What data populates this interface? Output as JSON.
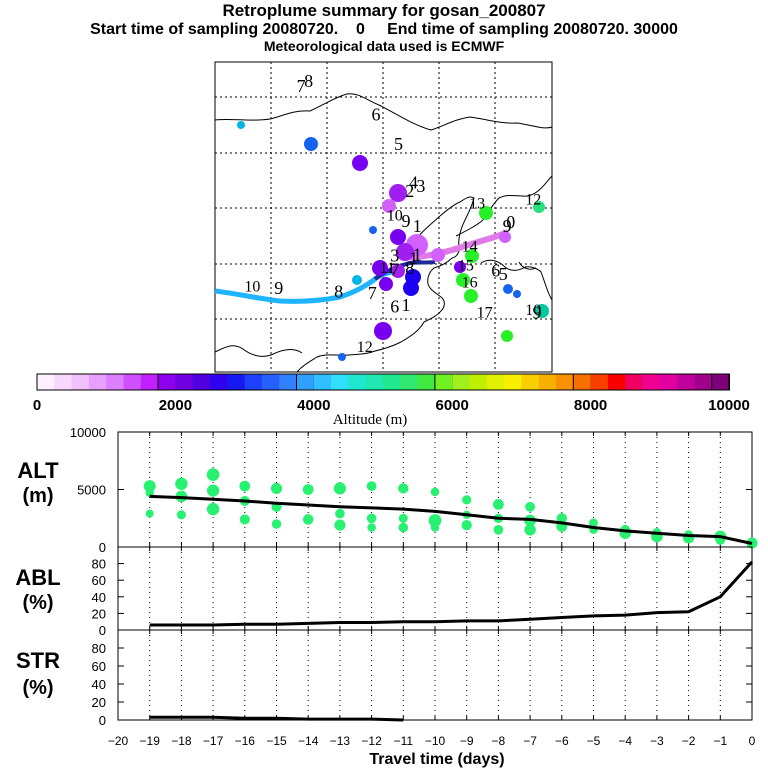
{
  "titles": {
    "title": "Retroplume summary for gosan_200807",
    "line2_start": "Start time of sampling 20080720.    0",
    "line2_end": "End time of sampling 20080720. 30000",
    "line3": "Meteorological data used is ECMWF"
  },
  "map": {
    "labels": [
      {
        "text": "8",
        "lon": 125,
        "lat": 58,
        "color": "#00b4e6"
      },
      {
        "text": "7",
        "lon": 127,
        "lat": 57.6,
        "color": "#00b4e6"
      },
      {
        "text": "6",
        "lon": 107,
        "lat": 55.3,
        "color": "#1464f0"
      },
      {
        "text": "5",
        "lon": 101,
        "lat": 52.9,
        "color": "#7800f0"
      },
      {
        "text": "4",
        "lon": 97,
        "lat": 49.8,
        "color": "#a01ef0"
      },
      {
        "text": "3",
        "lon": 95,
        "lat": 49.5,
        "color": "#b040f0"
      },
      {
        "text": "2",
        "lon": 98,
        "lat": 49.1,
        "color": "#d260ff"
      },
      {
        "text": "13",
        "lon": 80,
        "lat": 48.2,
        "color": "#28f028"
      },
      {
        "text": "12",
        "lon": 65,
        "lat": 48.5,
        "color": "#28e080"
      },
      {
        "text": "10",
        "lon": 102,
        "lat": 47.2,
        "color": "#1464f0"
      },
      {
        "text": "9",
        "lon": 99,
        "lat": 46.7,
        "color": "#7800f0"
      },
      {
        "text": "1",
        "lon": 96,
        "lat": 46.3,
        "color": "#a01ef0"
      },
      {
        "text": "0",
        "lon": 71,
        "lat": 46.6,
        "color": "#d260ff"
      },
      {
        "text": "9",
        "lon": 72,
        "lat": 46.3,
        "color": "#d260ff"
      },
      {
        "text": "14",
        "lon": 82,
        "lat": 44.7,
        "color": "#28f028"
      },
      {
        "text": "3",
        "lon": 102,
        "lat": 43.9,
        "color": "#7800f0"
      },
      {
        "text": "1",
        "lon": 97,
        "lat": 43.7,
        "color": "#a01ef0"
      },
      {
        "text": "1",
        "lon": 96,
        "lat": 44.0,
        "color": "#a01ef0"
      },
      {
        "text": "15",
        "lon": 83,
        "lat": 43.2,
        "color": "#28f028"
      },
      {
        "text": "11",
        "lon": 104,
        "lat": 43.0,
        "color": "#1464f0"
      },
      {
        "text": "7",
        "lon": 102,
        "lat": 42.8,
        "color": "#7800f0"
      },
      {
        "text": "8",
        "lon": 98,
        "lat": 42.9,
        "color": "#1e00f0"
      },
      {
        "text": "6",
        "lon": 75,
        "lat": 42.7,
        "color": "#1464f0"
      },
      {
        "text": "5",
        "lon": 73,
        "lat": 42.4,
        "color": "#1464f0"
      },
      {
        "text": "16",
        "lon": 82,
        "lat": 41.8,
        "color": "#28f028"
      },
      {
        "text": "10",
        "lon": 140,
        "lat": 41.5,
        "color": "#00b4e6"
      },
      {
        "text": "9",
        "lon": 133,
        "lat": 41.3,
        "color": "#00b4e6"
      },
      {
        "text": "8",
        "lon": 117,
        "lat": 41.0,
        "color": "#00b4e6"
      },
      {
        "text": "7",
        "lon": 108,
        "lat": 40.9,
        "color": "#1e00f0"
      },
      {
        "text": "6",
        "lon": 102,
        "lat": 39.8,
        "color": "#7800f0"
      },
      {
        "text": "1",
        "lon": 99,
        "lat": 39.9,
        "color": "#7800f0"
      },
      {
        "text": "10",
        "lon": 65,
        "lat": 39.6,
        "color": "#00c8a0"
      },
      {
        "text": "9",
        "lon": 64,
        "lat": 39.3,
        "color": "#00c8a0"
      },
      {
        "text": "17",
        "lon": 78,
        "lat": 39.4,
        "color": "#28f028"
      },
      {
        "text": "12",
        "lon": 110,
        "lat": 36.6,
        "color": "#1464f0"
      }
    ]
  },
  "colorbar": {
    "ticks": [
      "0",
      "2000",
      "4000",
      "6000",
      "8000",
      "10000"
    ],
    "label": "Altitude (m)",
    "colors": [
      "#fff0ff",
      "#f8d8ff",
      "#f0c0ff",
      "#e8a0ff",
      "#dc80ff",
      "#d050ff",
      "#c020ff",
      "#9000f0",
      "#7000e0",
      "#5000e0",
      "#3000f0",
      "#1818f0",
      "#2040ff",
      "#2860ff",
      "#3080ff",
      "#30a0ff",
      "#30c0ff",
      "#30e0f8",
      "#20e8d0",
      "#20e8b0",
      "#20e890",
      "#30e870",
      "#40e840",
      "#70f020",
      "#a0f020",
      "#c0f000",
      "#e0f000",
      "#f8f000",
      "#f8d000",
      "#f8b000",
      "#f89000",
      "#f87000",
      "#f84000",
      "#f80000",
      "#f00060",
      "#f00090",
      "#e000a0",
      "#c0009a",
      "#a0008a",
      "#80007a"
    ]
  },
  "side_labels": {
    "alt": "ALT",
    "alt_unit": "(m)",
    "abl": "ABL",
    "abl_unit": "(%)",
    "str": "STR",
    "str_unit": "(%)"
  },
  "xlabel": "Travel time (days)",
  "chart_data": [
    {
      "type": "line",
      "title": "ALT",
      "ylabel": "ALT (m)",
      "xlabel": "Travel time (days)",
      "xlim": [
        -20,
        0
      ],
      "ylim": [
        0,
        10000
      ],
      "yticks": [
        "0",
        "5000",
        "10000"
      ],
      "x": [
        -19,
        -18,
        -17,
        -16,
        -15,
        -14,
        -13,
        -12,
        -11,
        -10,
        -9,
        -8,
        -7,
        -6,
        -5,
        -4,
        -3,
        -2,
        -1,
        0
      ],
      "series": [
        {
          "name": "mean altitude",
          "values": [
            4400,
            4300,
            4150,
            4000,
            3800,
            3650,
            3500,
            3400,
            3300,
            3100,
            2800,
            2500,
            2400,
            2100,
            1700,
            1400,
            1200,
            1000,
            900,
            300
          ]
        }
      ],
      "scatter": [
        {
          "x": -19,
          "y": 5300
        },
        {
          "x": -19,
          "y": 4700
        },
        {
          "x": -19,
          "y": 2900
        },
        {
          "x": -18,
          "y": 5500
        },
        {
          "x": -18,
          "y": 4400
        },
        {
          "x": -18,
          "y": 2800
        },
        {
          "x": -17,
          "y": 6300
        },
        {
          "x": -17,
          "y": 4900
        },
        {
          "x": -17,
          "y": 3300
        },
        {
          "x": -16,
          "y": 5300
        },
        {
          "x": -16,
          "y": 4000
        },
        {
          "x": -16,
          "y": 2400
        },
        {
          "x": -15,
          "y": 5100
        },
        {
          "x": -15,
          "y": 3500
        },
        {
          "x": -15,
          "y": 2000
        },
        {
          "x": -14,
          "y": 5000
        },
        {
          "x": -14,
          "y": 2400
        },
        {
          "x": -13,
          "y": 5100
        },
        {
          "x": -13,
          "y": 2900
        },
        {
          "x": -13,
          "y": 1900
        },
        {
          "x": -12,
          "y": 5300
        },
        {
          "x": -12,
          "y": 2500
        },
        {
          "x": -12,
          "y": 1700
        },
        {
          "x": -11,
          "y": 5100
        },
        {
          "x": -11,
          "y": 2500
        },
        {
          "x": -11,
          "y": 1700
        },
        {
          "x": -10,
          "y": 4800
        },
        {
          "x": -10,
          "y": 2300
        },
        {
          "x": -10,
          "y": 1700
        },
        {
          "x": -9,
          "y": 4100
        },
        {
          "x": -9,
          "y": 2800
        },
        {
          "x": -9,
          "y": 1900
        },
        {
          "x": -8,
          "y": 3700
        },
        {
          "x": -8,
          "y": 2500
        },
        {
          "x": -8,
          "y": 1500
        },
        {
          "x": -7,
          "y": 3500
        },
        {
          "x": -7,
          "y": 2300
        },
        {
          "x": -7,
          "y": 1500
        },
        {
          "x": -6,
          "y": 2500
        },
        {
          "x": -6,
          "y": 1800
        },
        {
          "x": -5,
          "y": 2100
        },
        {
          "x": -5,
          "y": 1500
        },
        {
          "x": -4,
          "y": 1500
        },
        {
          "x": -4,
          "y": 1200
        },
        {
          "x": -3,
          "y": 1300
        },
        {
          "x": -3,
          "y": 900
        },
        {
          "x": -2,
          "y": 1100
        },
        {
          "x": -2,
          "y": 800
        },
        {
          "x": -1,
          "y": 900
        },
        {
          "x": -1,
          "y": 600
        },
        {
          "x": 0,
          "y": 350
        }
      ]
    },
    {
      "type": "line",
      "title": "ABL",
      "ylabel": "ABL (%)",
      "xlabel": "Travel time (days)",
      "xlim": [
        -20,
        0
      ],
      "ylim": [
        0,
        100
      ],
      "yticks": [
        "0",
        "20",
        "40",
        "60",
        "80"
      ],
      "x": [
        -19,
        -18,
        -17,
        -16,
        -15,
        -14,
        -13,
        -12,
        -11,
        -10,
        -9,
        -8,
        -7,
        -6,
        -5,
        -4,
        -3,
        -2,
        -1,
        0
      ],
      "series": [
        {
          "name": "ABL fraction",
          "values": [
            6,
            6,
            6,
            7,
            7,
            8,
            9,
            9,
            10,
            10,
            11,
            11,
            13,
            15,
            17,
            18,
            21,
            22,
            40,
            82
          ]
        }
      ]
    },
    {
      "type": "line",
      "title": "STR",
      "ylabel": "STR (%)",
      "xlabel": "Travel time (days)",
      "xlim": [
        -20,
        0
      ],
      "ylim": [
        0,
        100
      ],
      "yticks": [
        "0",
        "20",
        "40",
        "60",
        "80"
      ],
      "xticks": [
        "−20",
        "−19",
        "−18",
        "−17",
        "−16",
        "−15",
        "−14",
        "−13",
        "−12",
        "−11",
        "−10",
        "−9",
        "−8",
        "−7",
        "−6",
        "−5",
        "−4",
        "−3",
        "−2",
        "−1",
        "0"
      ],
      "x": [
        -19,
        -18,
        -17,
        -16,
        -15,
        -14,
        -13,
        -12,
        -11
      ],
      "series": [
        {
          "name": "stratospheric fraction",
          "values": [
            3,
            3,
            3,
            2,
            2,
            1,
            1,
            1,
            0
          ]
        }
      ]
    }
  ]
}
